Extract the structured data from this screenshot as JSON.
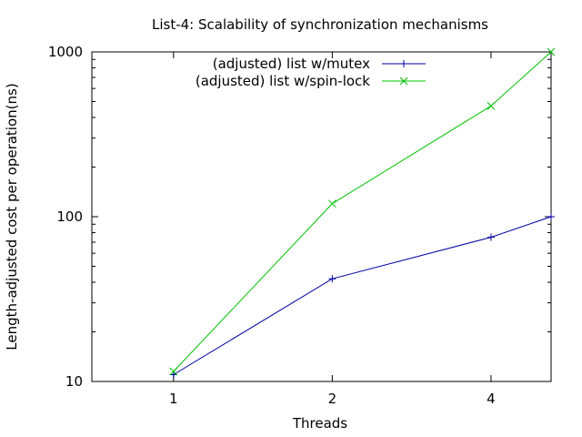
{
  "chart_data": {
    "type": "line",
    "title": "List-4: Scalability of synchronization mechanisms",
    "xlabel": "Threads",
    "ylabel": "Length-adjusted cost per operation(ns)",
    "x_scale": "log2",
    "y_scale": "log10",
    "xlim": [
      0.7,
      5.2
    ],
    "ylim": [
      10,
      1000
    ],
    "x_ticks": [
      1,
      2,
      4
    ],
    "y_ticks": [
      10,
      100,
      1000
    ],
    "grid": false,
    "legend_position": "top-right",
    "series": [
      {
        "name": "(adjusted) list w/mutex",
        "color": "#0000a0",
        "marker": "plus",
        "x": [
          1,
          2,
          4,
          5.2
        ],
        "y": [
          11,
          42,
          75,
          100
        ]
      },
      {
        "name": "(adjusted) list w/spin-lock",
        "color": "#00c000",
        "marker": "cross",
        "x": [
          1,
          2,
          4,
          5.2
        ],
        "y": [
          11.5,
          120,
          470,
          1000
        ]
      }
    ]
  }
}
